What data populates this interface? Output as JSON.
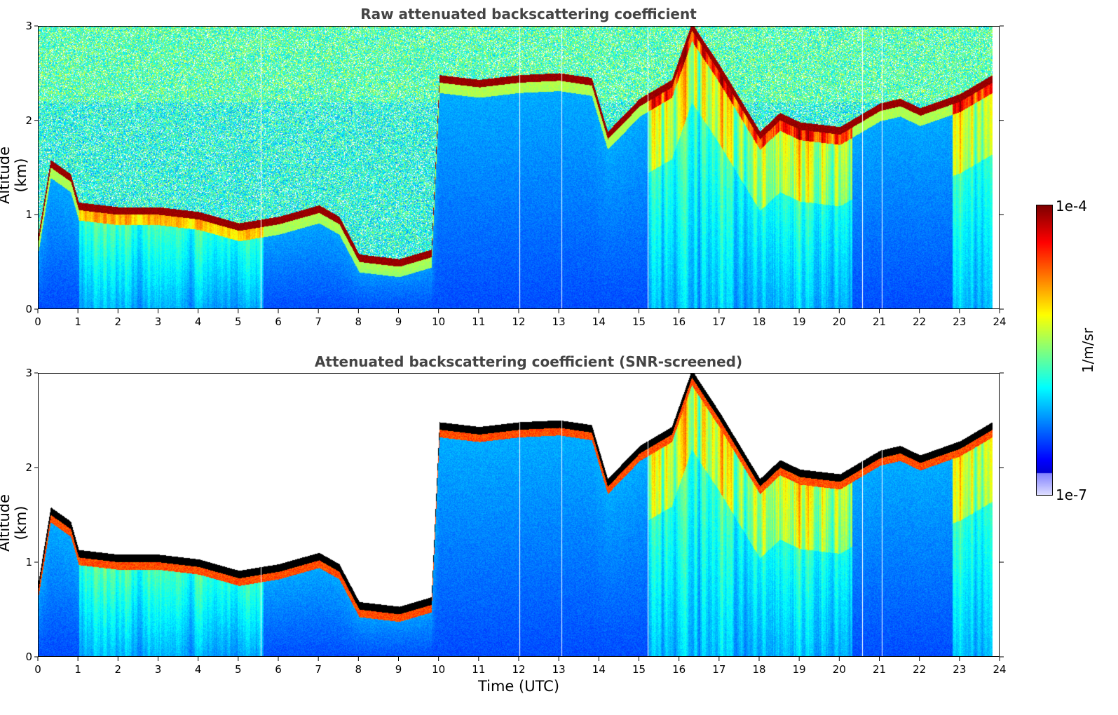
{
  "chart_data": [
    {
      "type": "heatmap",
      "title": "Raw attenuated backscattering coefficient",
      "xlabel": "",
      "ylabel": "Altitude (km)",
      "xlim": [
        0,
        24
      ],
      "ylim": [
        0,
        3
      ],
      "xticks": [
        "0",
        "1",
        "2",
        "3",
        "4",
        "5",
        "6",
        "7",
        "8",
        "9",
        "10",
        "11",
        "12",
        "13",
        "14",
        "15",
        "16",
        "17",
        "18",
        "19",
        "20",
        "21",
        "22",
        "23",
        "24"
      ],
      "yticks": [
        "0",
        "1",
        "2",
        "3"
      ],
      "screened": false
    },
    {
      "type": "heatmap",
      "title": "Attenuated backscattering coefficient (SNR-screened)",
      "xlabel": "Time (UTC)",
      "ylabel": "Altitude (km)",
      "xlim": [
        0,
        24
      ],
      "ylim": [
        0,
        3
      ],
      "xticks": [
        "0",
        "1",
        "2",
        "3",
        "4",
        "5",
        "6",
        "7",
        "8",
        "9",
        "10",
        "11",
        "12",
        "13",
        "14",
        "15",
        "16",
        "17",
        "18",
        "19",
        "20",
        "21",
        "22",
        "23",
        "24"
      ],
      "yticks": [
        "0",
        "1",
        "2",
        "3"
      ],
      "screened": true
    }
  ],
  "colorbar": {
    "label": "1/m/sr",
    "max_label": "1e-4",
    "min_label": "1e-7",
    "vmin": 1e-07,
    "vmax": 0.0001,
    "scale": "log",
    "colormap": "jet"
  },
  "cloud_layer_top_km": [
    {
      "t": 0.0,
      "z": 0.78
    },
    {
      "t": 0.3,
      "z": 1.55
    },
    {
      "t": 0.8,
      "z": 1.4
    },
    {
      "t": 1.0,
      "z": 1.1
    },
    {
      "t": 2.0,
      "z": 1.05
    },
    {
      "t": 3.0,
      "z": 1.05
    },
    {
      "t": 4.0,
      "z": 1.0
    },
    {
      "t": 5.0,
      "z": 0.88
    },
    {
      "t": 6.0,
      "z": 0.95
    },
    {
      "t": 7.0,
      "z": 1.07
    },
    {
      "t": 7.5,
      "z": 0.95
    },
    {
      "t": 8.0,
      "z": 0.55
    },
    {
      "t": 9.0,
      "z": 0.5
    },
    {
      "t": 9.8,
      "z": 0.6
    },
    {
      "t": 10.0,
      "z": 2.45
    },
    {
      "t": 11.0,
      "z": 2.4
    },
    {
      "t": 12.0,
      "z": 2.45
    },
    {
      "t": 13.0,
      "z": 2.47
    },
    {
      "t": 13.8,
      "z": 2.42
    },
    {
      "t": 14.2,
      "z": 1.85
    },
    {
      "t": 15.0,
      "z": 2.2
    },
    {
      "t": 15.8,
      "z": 2.4
    },
    {
      "t": 16.3,
      "z": 3.0
    },
    {
      "t": 17.0,
      "z": 2.55
    },
    {
      "t": 17.5,
      "z": 2.2
    },
    {
      "t": 18.0,
      "z": 1.85
    },
    {
      "t": 18.5,
      "z": 2.05
    },
    {
      "t": 19.0,
      "z": 1.95
    },
    {
      "t": 20.0,
      "z": 1.9
    },
    {
      "t": 21.0,
      "z": 2.15
    },
    {
      "t": 21.5,
      "z": 2.2
    },
    {
      "t": 22.0,
      "z": 2.1
    },
    {
      "t": 23.0,
      "z": 2.25
    },
    {
      "t": 23.8,
      "z": 2.45
    }
  ]
}
